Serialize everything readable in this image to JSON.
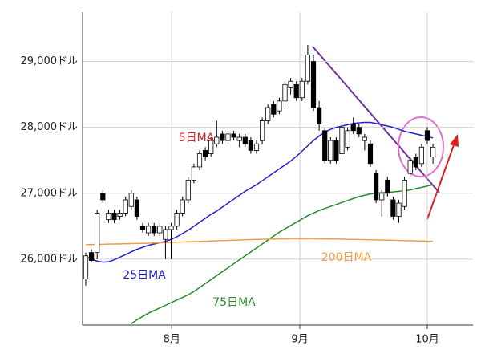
{
  "chart_data": {
    "type": "candlestick",
    "categories": [
      null,
      null,
      null,
      null,
      null,
      null,
      null,
      null,
      null,
      null,
      null,
      null,
      null,
      null,
      null,
      null,
      null,
      null,
      null,
      null,
      null,
      null,
      null,
      null,
      null,
      null,
      null,
      null,
      null,
      null,
      null,
      null,
      null,
      null,
      null,
      null,
      null,
      null,
      null,
      null,
      null,
      null,
      null,
      null,
      null,
      null,
      null,
      null,
      null,
      null,
      null,
      null,
      null,
      null,
      null,
      null,
      null,
      null,
      null,
      null,
      null,
      null
    ],
    "xticks": [
      {
        "value": 15.1,
        "label": "8月"
      },
      {
        "value": 37.6,
        "label": "9月"
      },
      {
        "value": 60,
        "label": "10月"
      }
    ],
    "ylim": [
      25000,
      29750
    ],
    "yticks": [
      {
        "value": 26000,
        "label": "26,000ドル"
      },
      {
        "value": 27000,
        "label": "27,000ドル"
      },
      {
        "value": 28000,
        "label": "28,000ドル"
      },
      {
        "value": 29000,
        "label": "29,000ドル"
      }
    ],
    "grid": true,
    "candles": {
      "open": [
        25700,
        26100,
        26100,
        27000,
        26600,
        26700,
        26650,
        26700,
        26800,
        26900,
        26500,
        26400,
        26500,
        26400,
        26300,
        26450,
        26500,
        26700,
        26900,
        27200,
        27400,
        27650,
        27600,
        27750,
        27900,
        27800,
        27900,
        27800,
        27850,
        27800,
        27650,
        27800,
        28100,
        28350,
        28250,
        28400,
        28600,
        28650,
        28450,
        28700,
        29000,
        28300,
        27950,
        27500,
        27800,
        27600,
        27700,
        28050,
        28000,
        27800,
        27750,
        27300,
        26900,
        27200,
        26900,
        26650,
        26800,
        27300,
        27550,
        27450,
        27950,
        27550
      ],
      "high": [
        26100,
        26150,
        26750,
        27050,
        26750,
        26750,
        26750,
        26950,
        27050,
        26950,
        26550,
        26550,
        26550,
        26550,
        26500,
        26550,
        26750,
        26950,
        27250,
        27450,
        27650,
        27700,
        27850,
        28100,
        27950,
        27950,
        27950,
        27900,
        27900,
        27850,
        27800,
        28150,
        28350,
        28400,
        28450,
        28700,
        28750,
        28700,
        28750,
        29250,
        29100,
        28400,
        28000,
        27850,
        27850,
        28050,
        28000,
        28150,
        28050,
        27900,
        27800,
        27350,
        27050,
        27250,
        26950,
        26900,
        27250,
        27550,
        27600,
        27750,
        28000,
        27750
      ],
      "low": [
        25600,
        25950,
        26000,
        26850,
        26550,
        26550,
        26600,
        26650,
        26750,
        26600,
        26400,
        26350,
        26350,
        26350,
        26000,
        26000,
        26450,
        26650,
        26850,
        27150,
        27350,
        27500,
        27550,
        27700,
        27750,
        27750,
        27800,
        27700,
        27700,
        27600,
        27600,
        27750,
        28050,
        28150,
        28200,
        28350,
        28500,
        28400,
        28400,
        28650,
        28250,
        27950,
        27450,
        27450,
        27450,
        27550,
        27650,
        27900,
        27850,
        27650,
        27400,
        26850,
        26650,
        26950,
        26600,
        26550,
        26750,
        27250,
        27350,
        27400,
        27750,
        27450
      ],
      "close": [
        26050,
        25980,
        26700,
        26900,
        26700,
        26600,
        26700,
        26900,
        27000,
        26650,
        26450,
        26500,
        26400,
        26500,
        26450,
        26500,
        26700,
        26900,
        27200,
        27400,
        27600,
        27550,
        27800,
        27850,
        27800,
        27900,
        27850,
        27850,
        27750,
        27650,
        27750,
        28100,
        28300,
        28200,
        28400,
        28650,
        28700,
        28450,
        28700,
        29100,
        28300,
        28050,
        27500,
        27800,
        27500,
        28000,
        27950,
        27950,
        27900,
        27850,
        27450,
        26900,
        27000,
        27000,
        26650,
        26850,
        27200,
        27500,
        27400,
        27700,
        27800,
        27700
      ],
      "up_color": "#ffffff",
      "down_color": "#000000"
    },
    "series": [
      {
        "name": "25日MA",
        "color": "#2222cc",
        "values": [
          26040,
          26000,
          25970,
          25955,
          25960,
          25990,
          26030,
          26070,
          26110,
          26150,
          26180,
          26210,
          26230,
          26250,
          26270,
          26300,
          26340,
          26390,
          26440,
          26500,
          26560,
          26620,
          26680,
          26730,
          26790,
          26850,
          26910,
          26970,
          27030,
          27080,
          27130,
          27190,
          27250,
          27310,
          27370,
          27430,
          27490,
          27560,
          27640,
          27720,
          27800,
          27870,
          27930,
          27970,
          28000,
          28020,
          28040,
          28060,
          28070,
          28075,
          28075,
          28060,
          28040,
          28020,
          28000,
          27970,
          27940,
          27920,
          27900,
          27880,
          27860,
          27840
        ]
      },
      {
        "name": "75日MA",
        "color": "#2a8a2a",
        "values": [
          null,
          null,
          null,
          null,
          null,
          null,
          null,
          null,
          25020,
          25080,
          25130,
          25180,
          25220,
          25260,
          25300,
          25340,
          25380,
          25420,
          25460,
          25510,
          25570,
          25630,
          25690,
          25750,
          25810,
          25870,
          25930,
          25990,
          26050,
          26110,
          26170,
          26230,
          26290,
          26350,
          26410,
          26460,
          26510,
          26560,
          26610,
          26660,
          26700,
          26740,
          26770,
          26800,
          26830,
          26860,
          26890,
          26920,
          26950,
          26970,
          26990,
          27000,
          27010,
          27010,
          27020,
          27030,
          27040,
          27050,
          27070,
          27090,
          27110,
          27130
        ]
      },
      {
        "name": "200日MA",
        "color": "#f0a040",
        "values": [
          26220,
          26222,
          26224,
          26226,
          26228,
          26230,
          26232,
          26234,
          26236,
          26238,
          26240,
          26243,
          26246,
          26249,
          26252,
          26255,
          26258,
          26261,
          26264,
          26267,
          26270,
          26273,
          26276,
          26279,
          26282,
          26285,
          26288,
          26291,
          26294,
          26297,
          26300,
          26302,
          26304,
          26306,
          26307,
          26308,
          26309,
          26310,
          26310,
          26310,
          26309,
          26308,
          26307,
          26306,
          26305,
          26304,
          26302,
          26300,
          26298,
          26296,
          26294,
          26292,
          26290,
          26288,
          26286,
          26284,
          26282,
          26280,
          26278,
          26276,
          26273,
          26270
        ]
      }
    ],
    "annotations": [
      {
        "text": "5日MA",
        "color": "#dd2222"
      }
    ]
  }
}
